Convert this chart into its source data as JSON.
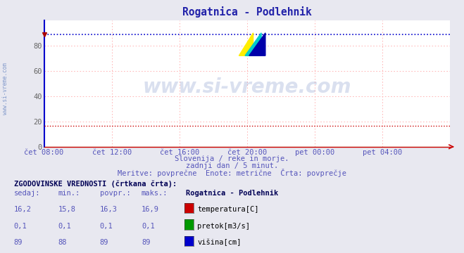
{
  "title": "Rogatnica - Podlehnik",
  "background_color": "#e8e8f0",
  "plot_bg_color": "#ffffff",
  "grid_color": "#ffaaaa",
  "x_label_color": "#5555bb",
  "y_label_color": "#666666",
  "subtitle_lines": [
    "Slovenija / reke in morje.",
    "zadnji dan / 5 minut.",
    "Meritve: povprečne  Enote: metrične  Črta: povprečje"
  ],
  "watermark": "www.si-vreme.com",
  "watermark_color": "#3355aa",
  "watermark_alpha": 0.18,
  "side_label": "www.si-vreme.com",
  "side_label_color": "#5577bb",
  "x_ticks_labels": [
    "čet 08:00",
    "čet 12:00",
    "čet 16:00",
    "čet 20:00",
    "pet 00:00",
    "pet 04:00"
  ],
  "x_ticks_pos": [
    0.0,
    0.1667,
    0.3333,
    0.5,
    0.6667,
    0.8333
  ],
  "ylim": [
    0,
    100
  ],
  "yticks": [
    0,
    20,
    40,
    60,
    80
  ],
  "n_points": 288,
  "temperatura_value": 16.3,
  "temperatura_color": "#cc0000",
  "pretok_value": 0.0,
  "pretok_color": "#009900",
  "visina_value": 89,
  "visina_color": "#0000cc",
  "table_header": "ZGODOVINSKE VREDNOSTI (črtkana črta):",
  "table_cols": [
    "sedaj:",
    "min.:",
    "povpr.:",
    "maks.:"
  ],
  "table_data": [
    [
      "16,2",
      "15,8",
      "16,3",
      "16,9"
    ],
    [
      "0,1",
      "0,1",
      "0,1",
      "0,1"
    ],
    [
      "89",
      "88",
      "89",
      "89"
    ]
  ],
  "table_series": [
    "temperatura[C]",
    "pretok[m3/s]",
    "višina[cm]"
  ],
  "table_series_colors": [
    "#cc0000",
    "#009900",
    "#0000cc"
  ],
  "station_name": "Rogatnica - Podlehnik",
  "arrow_color": "#aa0000",
  "title_color": "#2222aa",
  "title_fontsize": 10.5,
  "axis_color": "#cc0000",
  "logo_colors": [
    "#ffee00",
    "#00cccc",
    "#0000aa"
  ]
}
